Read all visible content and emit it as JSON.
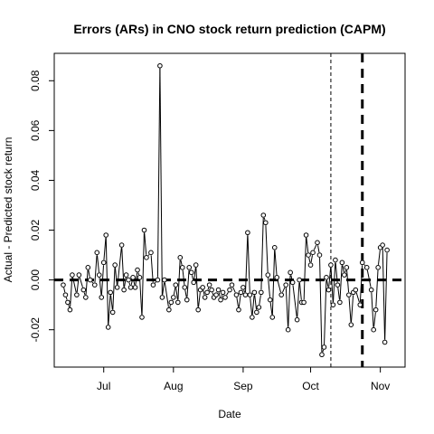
{
  "chart_data": {
    "type": "line",
    "title": "Errors (ARs) in CNO stock return prediction (CAPM)",
    "xlabel": "Date",
    "ylabel": "Actual - Predicted stock return",
    "x_ticks": [
      {
        "label": "Jul",
        "date": "2014-07-01"
      },
      {
        "label": "Aug",
        "date": "2014-08-01"
      },
      {
        "label": "Sep",
        "date": "2014-09-01"
      },
      {
        "label": "Oct",
        "date": "2014-10-01"
      },
      {
        "label": "Nov",
        "date": "2014-11-01"
      }
    ],
    "y_ticks": [
      {
        "label": "-0.02",
        "value": -0.02
      },
      {
        "label": "0.00",
        "value": 0.0
      },
      {
        "label": "0.02",
        "value": 0.02
      },
      {
        "label": "0.04",
        "value": 0.04
      },
      {
        "label": "0.06",
        "value": 0.06
      },
      {
        "label": "0.08",
        "value": 0.08
      }
    ],
    "xlim": [
      "2014-06-09",
      "2014-11-12"
    ],
    "ylim": [
      -0.035,
      0.091
    ],
    "reference_lines": [
      {
        "orientation": "horizontal",
        "value": 0.0,
        "style": "thick-dashed"
      },
      {
        "orientation": "vertical",
        "date": "2014-10-10",
        "style": "thin-dashed"
      },
      {
        "orientation": "vertical",
        "date": "2014-10-24",
        "style": "thick-dashed"
      }
    ],
    "series": [
      {
        "points": [
          {
            "date": "2014-06-13",
            "value": -0.002
          },
          {
            "date": "2014-06-14",
            "value": -0.006
          },
          {
            "date": "2014-06-15",
            "value": -0.009
          },
          {
            "date": "2014-06-16",
            "value": -0.012
          },
          {
            "date": "2014-06-17",
            "value": 0.002
          },
          {
            "date": "2014-06-19",
            "value": -0.006
          },
          {
            "date": "2014-06-20",
            "value": 0.002
          },
          {
            "date": "2014-06-22",
            "value": -0.004
          },
          {
            "date": "2014-06-23",
            "value": -0.007
          },
          {
            "date": "2014-06-24",
            "value": 0.005
          },
          {
            "date": "2014-06-25",
            "value": 0.0
          },
          {
            "date": "2014-06-27",
            "value": -0.002
          },
          {
            "date": "2014-06-28",
            "value": 0.011
          },
          {
            "date": "2014-06-29",
            "value": 0.002
          },
          {
            "date": "2014-06-30",
            "value": -0.007
          },
          {
            "date": "2014-07-01",
            "value": 0.007
          },
          {
            "date": "2014-07-02",
            "value": 0.018
          },
          {
            "date": "2014-07-03",
            "value": -0.019
          },
          {
            "date": "2014-07-04",
            "value": -0.005
          },
          {
            "date": "2014-07-05",
            "value": -0.013
          },
          {
            "date": "2014-07-06",
            "value": 0.006
          },
          {
            "date": "2014-07-07",
            "value": -0.003
          },
          {
            "date": "2014-07-09",
            "value": 0.014
          },
          {
            "date": "2014-07-10",
            "value": -0.004
          },
          {
            "date": "2014-07-11",
            "value": 0.002
          },
          {
            "date": "2014-07-12",
            "value": 0.0
          },
          {
            "date": "2014-07-13",
            "value": -0.003
          },
          {
            "date": "2014-07-14",
            "value": 0.001
          },
          {
            "date": "2014-07-15",
            "value": -0.003
          },
          {
            "date": "2014-07-16",
            "value": 0.004
          },
          {
            "date": "2014-07-17",
            "value": 0.001
          },
          {
            "date": "2014-07-18",
            "value": -0.015
          },
          {
            "date": "2014-07-19",
            "value": 0.02
          },
          {
            "date": "2014-07-20",
            "value": 0.009
          },
          {
            "date": "2014-07-22",
            "value": 0.011
          },
          {
            "date": "2014-07-23",
            "value": -0.002
          },
          {
            "date": "2014-07-25",
            "value": 0.0
          },
          {
            "date": "2014-07-26",
            "value": 0.086
          },
          {
            "date": "2014-07-27",
            "value": -0.007
          },
          {
            "date": "2014-07-28",
            "value": 0.0
          },
          {
            "date": "2014-07-30",
            "value": -0.012
          },
          {
            "date": "2014-07-31",
            "value": -0.009
          },
          {
            "date": "2014-08-01",
            "value": -0.007
          },
          {
            "date": "2014-08-02",
            "value": -0.002
          },
          {
            "date": "2014-08-03",
            "value": -0.009
          },
          {
            "date": "2014-08-04",
            "value": 0.009
          },
          {
            "date": "2014-08-05",
            "value": 0.005
          },
          {
            "date": "2014-08-06",
            "value": -0.003
          },
          {
            "date": "2014-08-07",
            "value": -0.008
          },
          {
            "date": "2014-08-08",
            "value": 0.005
          },
          {
            "date": "2014-08-09",
            "value": 0.003
          },
          {
            "date": "2014-08-10",
            "value": -0.001
          },
          {
            "date": "2014-08-11",
            "value": 0.006
          },
          {
            "date": "2014-08-12",
            "value": -0.012
          },
          {
            "date": "2014-08-13",
            "value": -0.004
          },
          {
            "date": "2014-08-14",
            "value": -0.003
          },
          {
            "date": "2014-08-15",
            "value": -0.007
          },
          {
            "date": "2014-08-16",
            "value": -0.005
          },
          {
            "date": "2014-08-17",
            "value": -0.002
          },
          {
            "date": "2014-08-18",
            "value": -0.004
          },
          {
            "date": "2014-08-19",
            "value": -0.007
          },
          {
            "date": "2014-08-20",
            "value": -0.006
          },
          {
            "date": "2014-08-21",
            "value": -0.004
          },
          {
            "date": "2014-08-22",
            "value": -0.008
          },
          {
            "date": "2014-08-23",
            "value": -0.005
          },
          {
            "date": "2014-08-24",
            "value": -0.007
          },
          {
            "date": "2014-08-26",
            "value": -0.004
          },
          {
            "date": "2014-08-27",
            "value": -0.002
          },
          {
            "date": "2014-08-29",
            "value": -0.006
          },
          {
            "date": "2014-08-30",
            "value": -0.012
          },
          {
            "date": "2014-08-31",
            "value": -0.005
          },
          {
            "date": "2014-09-01",
            "value": -0.003
          },
          {
            "date": "2014-09-02",
            "value": -0.006
          },
          {
            "date": "2014-09-03",
            "value": 0.019
          },
          {
            "date": "2014-09-04",
            "value": -0.006
          },
          {
            "date": "2014-09-05",
            "value": -0.015
          },
          {
            "date": "2014-09-06",
            "value": -0.005
          },
          {
            "date": "2014-09-07",
            "value": -0.013
          },
          {
            "date": "2014-09-08",
            "value": -0.011
          },
          {
            "date": "2014-09-09",
            "value": -0.005
          },
          {
            "date": "2014-09-10",
            "value": 0.026
          },
          {
            "date": "2014-09-11",
            "value": 0.023
          },
          {
            "date": "2014-09-12",
            "value": 0.002
          },
          {
            "date": "2014-09-13",
            "value": -0.008
          },
          {
            "date": "2014-09-14",
            "value": -0.015
          },
          {
            "date": "2014-09-15",
            "value": 0.013
          },
          {
            "date": "2014-09-16",
            "value": 0.001
          },
          {
            "date": "2014-09-18",
            "value": -0.006
          },
          {
            "date": "2014-09-20",
            "value": -0.002
          },
          {
            "date": "2014-09-21",
            "value": -0.02
          },
          {
            "date": "2014-09-22",
            "value": 0.003
          },
          {
            "date": "2014-09-23",
            "value": -0.001
          },
          {
            "date": "2014-09-25",
            "value": -0.016
          },
          {
            "date": "2014-09-26",
            "value": 0.0
          },
          {
            "date": "2014-09-27",
            "value": -0.009
          },
          {
            "date": "2014-09-28",
            "value": -0.009
          },
          {
            "date": "2014-09-29",
            "value": 0.018
          },
          {
            "date": "2014-09-30",
            "value": 0.01
          },
          {
            "date": "2014-10-01",
            "value": 0.006
          },
          {
            "date": "2014-10-02",
            "value": 0.011
          },
          {
            "date": "2014-10-04",
            "value": 0.015
          },
          {
            "date": "2014-10-05",
            "value": 0.01
          },
          {
            "date": "2014-10-06",
            "value": -0.03
          },
          {
            "date": "2014-10-07",
            "value": -0.027
          },
          {
            "date": "2014-10-08",
            "value": 0.001
          },
          {
            "date": "2014-10-09",
            "value": -0.004
          },
          {
            "date": "2014-10-10",
            "value": 0.006
          },
          {
            "date": "2014-10-11",
            "value": -0.01
          },
          {
            "date": "2014-10-12",
            "value": 0.008
          },
          {
            "date": "2014-10-13",
            "value": -0.002
          },
          {
            "date": "2014-10-14",
            "value": -0.009
          },
          {
            "date": "2014-10-15",
            "value": 0.007
          },
          {
            "date": "2014-10-16",
            "value": 0.002
          },
          {
            "date": "2014-10-17",
            "value": 0.005
          },
          {
            "date": "2014-10-18",
            "value": -0.006
          },
          {
            "date": "2014-10-19",
            "value": -0.018
          },
          {
            "date": "2014-10-20",
            "value": -0.005
          },
          {
            "date": "2014-10-21",
            "value": -0.004
          },
          {
            "date": "2014-10-23",
            "value": -0.01
          },
          {
            "date": "2014-10-24",
            "value": 0.007
          },
          {
            "date": "2014-10-26",
            "value": 0.005
          },
          {
            "date": "2014-10-28",
            "value": -0.004
          },
          {
            "date": "2014-10-29",
            "value": -0.02
          },
          {
            "date": "2014-10-30",
            "value": -0.012
          },
          {
            "date": "2014-10-31",
            "value": 0.005
          },
          {
            "date": "2014-11-01",
            "value": 0.013
          },
          {
            "date": "2014-11-02",
            "value": 0.014
          },
          {
            "date": "2014-11-03",
            "value": -0.025
          },
          {
            "date": "2014-11-04",
            "value": 0.012
          }
        ]
      }
    ]
  }
}
